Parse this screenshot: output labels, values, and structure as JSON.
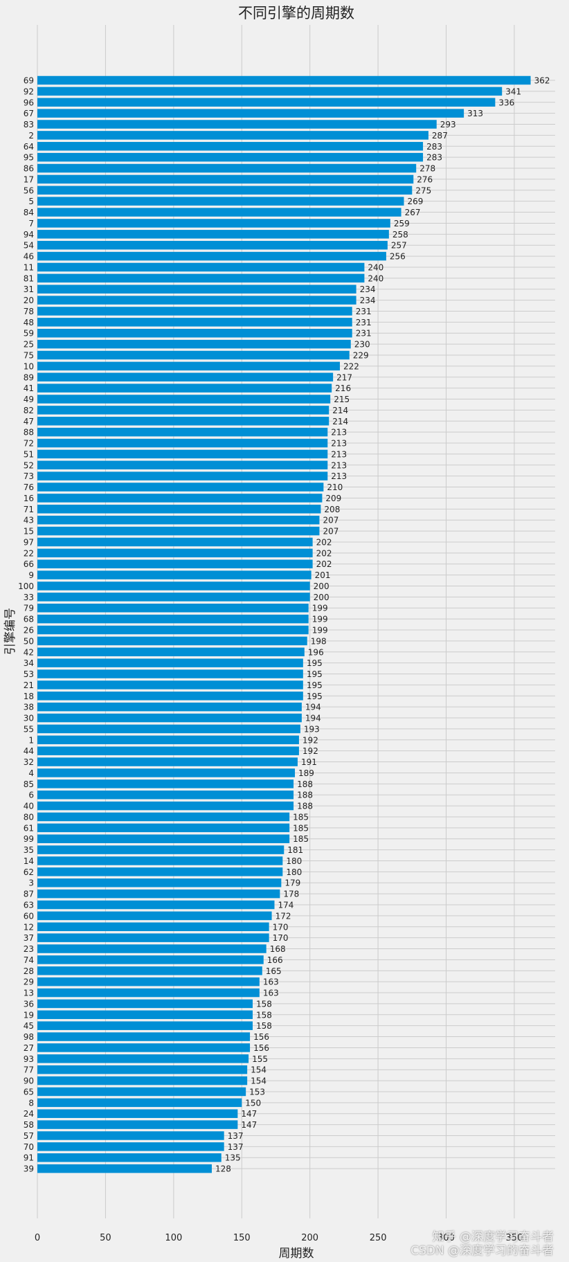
{
  "chart_data": {
    "type": "bar",
    "orientation": "horizontal",
    "title": "不同引擎的周期数",
    "xlabel": "周期数",
    "ylabel": "引擎编号",
    "xlim": [
      0,
      380
    ],
    "xticks": [
      0,
      50,
      100,
      150,
      200,
      250,
      300,
      350
    ],
    "xtick_labels": [
      "0",
      "50",
      "100",
      "150",
      "200",
      "250",
      "300",
      "350"
    ],
    "grid": true,
    "bar_color": "#008fd5",
    "categories": [
      "69",
      "92",
      "96",
      "67",
      "83",
      "2",
      "64",
      "95",
      "86",
      "17",
      "56",
      "5",
      "84",
      "7",
      "94",
      "54",
      "46",
      "11",
      "81",
      "31",
      "20",
      "78",
      "48",
      "59",
      "25",
      "75",
      "10",
      "89",
      "41",
      "49",
      "82",
      "47",
      "88",
      "72",
      "51",
      "52",
      "73",
      "76",
      "16",
      "71",
      "43",
      "15",
      "97",
      "22",
      "66",
      "9",
      "100",
      "33",
      "79",
      "68",
      "26",
      "50",
      "42",
      "34",
      "53",
      "21",
      "18",
      "38",
      "30",
      "55",
      "1",
      "44",
      "32",
      "4",
      "85",
      "6",
      "40",
      "80",
      "61",
      "99",
      "35",
      "14",
      "62",
      "3",
      "87",
      "63",
      "60",
      "12",
      "37",
      "23",
      "74",
      "28",
      "29",
      "13",
      "36",
      "19",
      "45",
      "98",
      "27",
      "93",
      "77",
      "90",
      "65",
      "8",
      "24",
      "58",
      "57",
      "70",
      "91",
      "39"
    ],
    "values": [
      362,
      341,
      336,
      313,
      293,
      287,
      283,
      283,
      278,
      276,
      275,
      269,
      267,
      259,
      258,
      257,
      256,
      240,
      240,
      234,
      234,
      231,
      231,
      231,
      230,
      229,
      222,
      217,
      216,
      215,
      214,
      214,
      213,
      213,
      213,
      213,
      213,
      210,
      209,
      208,
      207,
      207,
      202,
      202,
      202,
      201,
      200,
      200,
      199,
      199,
      199,
      198,
      196,
      195,
      195,
      195,
      195,
      194,
      194,
      193,
      192,
      192,
      191,
      189,
      188,
      188,
      188,
      185,
      185,
      185,
      181,
      180,
      180,
      179,
      178,
      174,
      172,
      170,
      170,
      168,
      166,
      165,
      163,
      163,
      158,
      158,
      158,
      156,
      156,
      155,
      154,
      154,
      153,
      150,
      147,
      147,
      137,
      137,
      135,
      128
    ]
  },
  "watermark": {
    "line1": "知乎 @深度学习奋斗者",
    "line2": "CSDN @深度学习的奋斗者"
  }
}
